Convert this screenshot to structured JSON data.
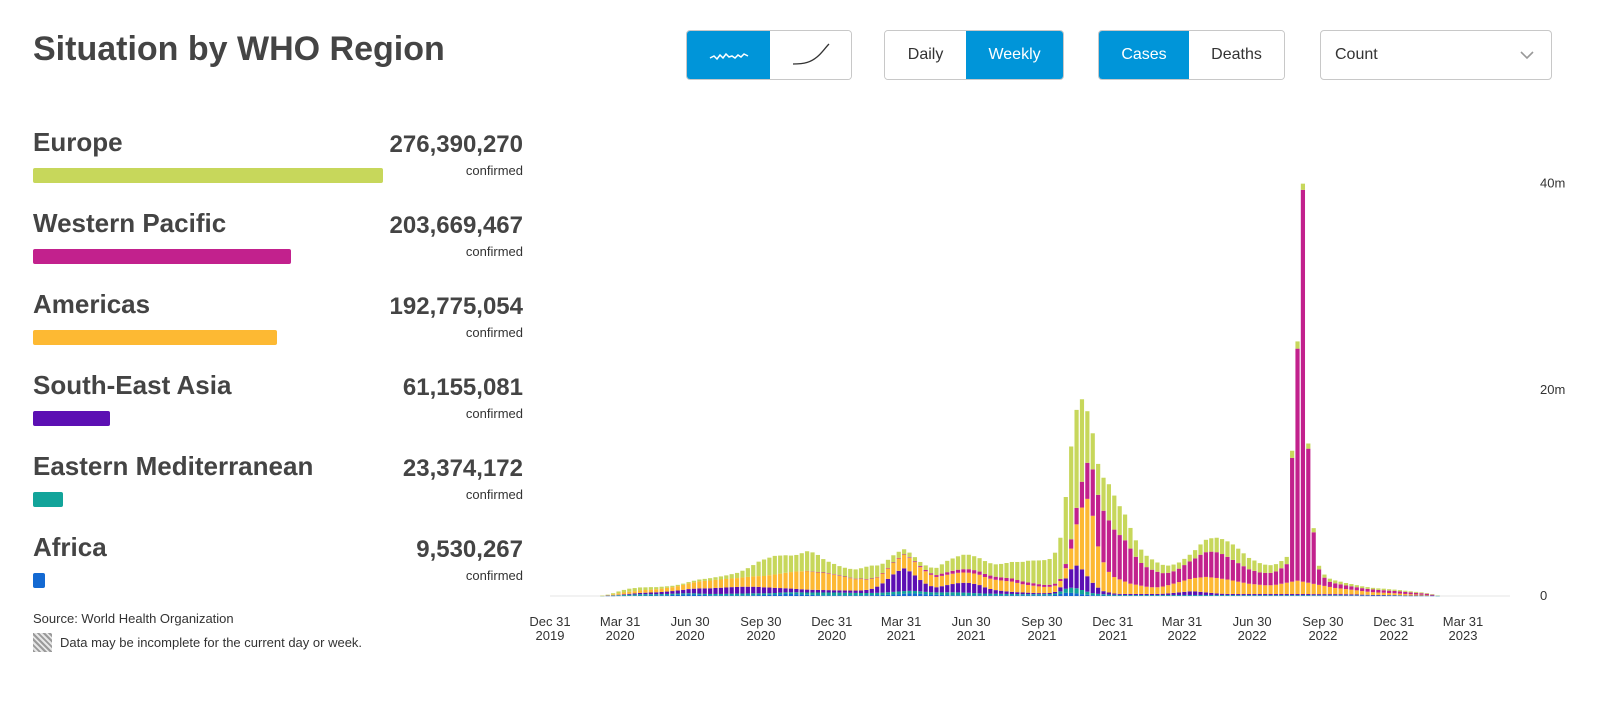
{
  "title": "Situation by WHO Region",
  "controls": {
    "chart_style": {
      "options": [
        "trend-line-icon",
        "cumulative-curve-icon"
      ],
      "selected": 0
    },
    "period": {
      "options": [
        "Daily",
        "Weekly"
      ],
      "selected": 1
    },
    "metric": {
      "options": [
        "Cases",
        "Deaths"
      ],
      "selected": 0
    },
    "scale": {
      "selected": "Count"
    }
  },
  "colors": {
    "accent": "#0095d9"
  },
  "regions": [
    {
      "name": "Europe",
      "value": "276,390,270",
      "sub": "confirmed",
      "color": "#c7d75b",
      "fraction": 1.0
    },
    {
      "name": "Western Pacific",
      "value": "203,669,467",
      "sub": "confirmed",
      "color": "#c2218d",
      "fraction": 0.737
    },
    {
      "name": "Americas",
      "value": "192,775,054",
      "sub": "confirmed",
      "color": "#fdb933",
      "fraction": 0.697
    },
    {
      "name": "South-East Asia",
      "value": "61,155,081",
      "sub": "confirmed",
      "color": "#5c0fb3",
      "fraction": 0.221
    },
    {
      "name": "Eastern Mediterranean",
      "value": "23,374,172",
      "sub": "confirmed",
      "color": "#12a49a",
      "fraction": 0.085
    },
    {
      "name": "Africa",
      "value": "9,530,267",
      "sub": "confirmed",
      "color": "#1369d2",
      "fraction": 0.034
    }
  ],
  "source": "Source: World Health Organization",
  "note": "Data may be incomplete for the current day or week.",
  "chart_data": {
    "type": "bar",
    "stacked": true,
    "x_start": "2020-01-05",
    "x_step_days": 7,
    "y_unit": "m",
    "ylim": [
      0,
      45
    ],
    "yticks": [
      {
        "value": 0,
        "label": "0"
      },
      {
        "value": 20,
        "label": "20m"
      },
      {
        "value": 40,
        "label": "40m"
      }
    ],
    "xticks": [
      {
        "date": "2019-12-31",
        "label": [
          "Dec 31",
          "2019"
        ]
      },
      {
        "date": "2020-03-31",
        "label": [
          "Mar 31",
          "2020"
        ]
      },
      {
        "date": "2020-06-30",
        "label": [
          "Jun 30",
          "2020"
        ]
      },
      {
        "date": "2020-09-30",
        "label": [
          "Sep 30",
          "2020"
        ]
      },
      {
        "date": "2020-12-31",
        "label": [
          "Dec 31",
          "2020"
        ]
      },
      {
        "date": "2021-03-31",
        "label": [
          "Mar 31",
          "2021"
        ]
      },
      {
        "date": "2021-06-30",
        "label": [
          "Jun 30",
          "2021"
        ]
      },
      {
        "date": "2021-09-30",
        "label": [
          "Sep 30",
          "2021"
        ]
      },
      {
        "date": "2021-12-31",
        "label": [
          "Dec 31",
          "2021"
        ]
      },
      {
        "date": "2022-03-31",
        "label": [
          "Mar 31",
          "2022"
        ]
      },
      {
        "date": "2022-06-30",
        "label": [
          "Jun 30",
          "2022"
        ]
      },
      {
        "date": "2022-09-30",
        "label": [
          "Sep 30",
          "2022"
        ]
      },
      {
        "date": "2022-12-31",
        "label": [
          "Dec 31",
          "2022"
        ]
      },
      {
        "date": "2023-03-31",
        "label": [
          "Mar 31",
          "2023"
        ]
      }
    ],
    "stack_order": [
      "Africa",
      "Eastern Mediterranean",
      "South-East Asia",
      "Americas",
      "Western Pacific",
      "Europe"
    ],
    "series": [
      {
        "name": "Europe",
        "color": "#c7d75b",
        "values": [
          0,
          0,
          0,
          0,
          0,
          0,
          0,
          0,
          0,
          0.02,
          0.05,
          0.1,
          0.18,
          0.25,
          0.3,
          0.3,
          0.29,
          0.26,
          0.24,
          0.2,
          0.18,
          0.15,
          0.13,
          0.12,
          0.12,
          0.13,
          0.15,
          0.18,
          0.2,
          0.23,
          0.26,
          0.3,
          0.35,
          0.42,
          0.5,
          0.65,
          0.85,
          1.1,
          1.4,
          1.6,
          1.7,
          1.8,
          1.75,
          1.7,
          1.6,
          1.6,
          1.75,
          1.9,
          1.85,
          1.65,
          1.3,
          1.1,
          1.0,
          0.9,
          0.85,
          0.85,
          0.9,
          1.0,
          1.2,
          1.25,
          1.1,
          0.9,
          0.8,
          0.7,
          0.6,
          0.5,
          0.45,
          0.4,
          0.4,
          0.45,
          0.55,
          0.7,
          0.9,
          1.1,
          1.2,
          1.3,
          1.4,
          1.4,
          1.35,
          1.3,
          1.25,
          1.2,
          1.2,
          1.3,
          1.45,
          1.6,
          1.75,
          1.9,
          2.1,
          2.2,
          2.3,
          2.4,
          2.5,
          3.0,
          4.0,
          6.5,
          9.0,
          9.5,
          8.0,
          5.0,
          3.5,
          3.0,
          3.2,
          3.5,
          3.3,
          2.8,
          2.5,
          2.0,
          1.6,
          1.3,
          1.1,
          1.0,
          0.9,
          0.8,
          0.7,
          0.65,
          0.6,
          0.6,
          0.65,
          0.8,
          1.0,
          1.2,
          1.3,
          1.4,
          1.45,
          1.5,
          1.5,
          1.4,
          1.25,
          1.1,
          1.0,
          0.9,
          0.8,
          0.75,
          0.7,
          0.7,
          0.7,
          0.7,
          0.7,
          0.6,
          0.5,
          0.4,
          0.35,
          0.3,
          0.3,
          0.28,
          0.26,
          0.24,
          0.22,
          0.2,
          0.18,
          0.17,
          0.16,
          0.15,
          0.15,
          0.14,
          0.13,
          0.12,
          0.11,
          0.1,
          0.09,
          0.08,
          0.06,
          0.05,
          0.03
        ]
      },
      {
        "name": "Western Pacific",
        "color": "#c2218d",
        "values": [
          0,
          0,
          0,
          0,
          0,
          0,
          0,
          0,
          0,
          0,
          0,
          0,
          0,
          0,
          0,
          0,
          0,
          0,
          0,
          0,
          0,
          0,
          0,
          0,
          0,
          0,
          0,
          0,
          0,
          0,
          0,
          0,
          0,
          0,
          0,
          0,
          0,
          0,
          0,
          0,
          0,
          0,
          0,
          0,
          0,
          0,
          0,
          0.02,
          0.03,
          0.04,
          0.05,
          0.05,
          0.05,
          0.05,
          0.05,
          0.05,
          0.05,
          0.05,
          0.05,
          0.05,
          0.05,
          0.05,
          0.05,
          0.05,
          0.05,
          0.05,
          0.06,
          0.08,
          0.1,
          0.12,
          0.15,
          0.18,
          0.22,
          0.25,
          0.28,
          0.3,
          0.32,
          0.34,
          0.33,
          0.31,
          0.3,
          0.3,
          0.3,
          0.3,
          0.3,
          0.3,
          0.28,
          0.27,
          0.25,
          0.24,
          0.22,
          0.2,
          0.2,
          0.2,
          0.2,
          0.4,
          0.9,
          1.6,
          2.5,
          3.5,
          4.5,
          5.0,
          5.0,
          5.0,
          4.6,
          4.3,
          4.0,
          3.4,
          2.7,
          2.2,
          1.9,
          1.7,
          1.5,
          1.3,
          1.2,
          1.2,
          1.3,
          1.5,
          1.7,
          1.9,
          2.2,
          2.4,
          2.5,
          2.5,
          2.4,
          2.2,
          2.0,
          1.8,
          1.6,
          1.4,
          1.3,
          1.2,
          1.2,
          1.2,
          1.3,
          1.5,
          1.8,
          12.0,
          22.5,
          38.0,
          13.0,
          5.0,
          1.5,
          0.8,
          0.5,
          0.45,
          0.4,
          0.35,
          0.33,
          0.3,
          0.28,
          0.27,
          0.26,
          0.25,
          0.24,
          0.23,
          0.22,
          0.21,
          0.2,
          0.18,
          0.16,
          0.14,
          0.12,
          0.1
        ]
      },
      {
        "name": "Americas",
        "color": "#fdb933",
        "values": [
          0,
          0,
          0,
          0,
          0,
          0,
          0,
          0,
          0,
          0.01,
          0.04,
          0.1,
          0.14,
          0.18,
          0.2,
          0.22,
          0.24,
          0.26,
          0.28,
          0.3,
          0.33,
          0.36,
          0.38,
          0.42,
          0.48,
          0.55,
          0.62,
          0.68,
          0.72,
          0.75,
          0.78,
          0.8,
          0.82,
          0.84,
          0.86,
          0.9,
          0.95,
          1.0,
          1.05,
          1.1,
          1.2,
          1.3,
          1.4,
          1.5,
          1.6,
          1.7,
          1.75,
          1.8,
          1.75,
          1.7,
          1.65,
          1.6,
          1.5,
          1.4,
          1.3,
          1.2,
          1.1,
          1.1,
          1.0,
          0.95,
          0.9,
          0.95,
          1.0,
          1.1,
          1.2,
          1.3,
          1.3,
          1.3,
          1.25,
          1.2,
          1.1,
          1.0,
          1.0,
          1.0,
          1.0,
          1.0,
          1.0,
          1.0,
          1.0,
          1.0,
          1.0,
          1.0,
          1.0,
          1.0,
          1.0,
          1.0,
          0.9,
          0.8,
          0.75,
          0.7,
          0.65,
          0.6,
          0.6,
          0.6,
          0.6,
          1.0,
          2.0,
          4.0,
          6.0,
          7.5,
          6.5,
          4.0,
          2.8,
          2.0,
          1.6,
          1.4,
          1.2,
          1.0,
          0.9,
          0.8,
          0.7,
          0.65,
          0.65,
          0.7,
          0.8,
          0.9,
          1.0,
          1.1,
          1.2,
          1.3,
          1.4,
          1.5,
          1.5,
          1.5,
          1.45,
          1.4,
          1.3,
          1.2,
          1.1,
          1.0,
          0.95,
          0.9,
          0.85,
          0.85,
          0.9,
          1.0,
          1.1,
          1.2,
          1.3,
          1.2,
          1.1,
          1.0,
          0.9,
          0.8,
          0.7,
          0.6,
          0.55,
          0.5,
          0.45,
          0.4,
          0.35,
          0.3,
          0.27,
          0.24,
          0.22,
          0.2,
          0.18,
          0.16,
          0.14,
          0.12,
          0.1,
          0.08,
          0.06
        ]
      },
      {
        "name": "South-East Asia",
        "color": "#5c0fb3",
        "values": [
          0,
          0,
          0,
          0,
          0,
          0,
          0,
          0,
          0,
          0,
          0.01,
          0.02,
          0.04,
          0.06,
          0.08,
          0.1,
          0.12,
          0.14,
          0.16,
          0.18,
          0.2,
          0.23,
          0.26,
          0.3,
          0.34,
          0.4,
          0.45,
          0.5,
          0.52,
          0.55,
          0.58,
          0.6,
          0.62,
          0.64,
          0.65,
          0.66,
          0.65,
          0.64,
          0.62,
          0.58,
          0.55,
          0.5,
          0.45,
          0.4,
          0.36,
          0.32,
          0.3,
          0.28,
          0.26,
          0.25,
          0.24,
          0.23,
          0.22,
          0.22,
          0.22,
          0.22,
          0.23,
          0.25,
          0.3,
          0.4,
          0.6,
          0.9,
          1.3,
          1.7,
          2.0,
          2.2,
          1.9,
          1.5,
          1.1,
          0.8,
          0.6,
          0.5,
          0.6,
          0.7,
          0.8,
          0.9,
          0.95,
          0.95,
          0.9,
          0.8,
          0.6,
          0.45,
          0.35,
          0.3,
          0.25,
          0.2,
          0.18,
          0.16,
          0.14,
          0.12,
          0.1,
          0.1,
          0.1,
          0.15,
          0.4,
          1.0,
          1.8,
          2.2,
          2.0,
          1.5,
          1.0,
          0.6,
          0.3,
          0.2,
          0.12,
          0.1,
          0.1,
          0.1,
          0.1,
          0.1,
          0.1,
          0.1,
          0.1,
          0.12,
          0.15,
          0.2,
          0.25,
          0.3,
          0.35,
          0.35,
          0.3,
          0.25,
          0.2,
          0.15,
          0.12,
          0.1,
          0.1,
          0.1,
          0.1,
          0.1,
          0.1,
          0.1,
          0.1,
          0.1,
          0.1,
          0.1,
          0.1,
          0.1,
          0.1,
          0.1,
          0.1,
          0.1,
          0.1,
          0.1,
          0.1,
          0.1,
          0.1,
          0.1,
          0.09,
          0.08,
          0.07,
          0.06,
          0.05,
          0.05,
          0.05,
          0.04,
          0.04,
          0.03,
          0.03,
          0.02,
          0.02,
          0.02,
          0.01
        ]
      },
      {
        "name": "Eastern Mediterranean",
        "color": "#12a49a",
        "values": [
          0,
          0,
          0,
          0,
          0,
          0,
          0,
          0,
          0,
          0.01,
          0.02,
          0.04,
          0.06,
          0.08,
          0.1,
          0.12,
          0.14,
          0.14,
          0.13,
          0.12,
          0.12,
          0.12,
          0.12,
          0.12,
          0.12,
          0.12,
          0.12,
          0.12,
          0.12,
          0.12,
          0.13,
          0.14,
          0.15,
          0.16,
          0.17,
          0.18,
          0.18,
          0.18,
          0.17,
          0.16,
          0.15,
          0.14,
          0.14,
          0.15,
          0.16,
          0.18,
          0.2,
          0.22,
          0.24,
          0.26,
          0.27,
          0.28,
          0.28,
          0.27,
          0.26,
          0.25,
          0.24,
          0.23,
          0.22,
          0.22,
          0.22,
          0.23,
          0.24,
          0.25,
          0.26,
          0.26,
          0.25,
          0.24,
          0.23,
          0.22,
          0.22,
          0.23,
          0.25,
          0.27,
          0.28,
          0.28,
          0.27,
          0.25,
          0.22,
          0.2,
          0.18,
          0.17,
          0.16,
          0.15,
          0.14,
          0.14,
          0.13,
          0.12,
          0.12,
          0.12,
          0.12,
          0.12,
          0.12,
          0.15,
          0.25,
          0.4,
          0.5,
          0.5,
          0.4,
          0.3,
          0.2,
          0.15,
          0.12,
          0.1,
          0.08,
          0.07,
          0.06,
          0.06,
          0.06,
          0.06,
          0.06,
          0.06,
          0.06,
          0.06,
          0.06,
          0.06,
          0.06,
          0.06,
          0.06,
          0.06,
          0.06,
          0.06,
          0.06,
          0.06,
          0.06,
          0.06,
          0.06,
          0.05,
          0.05,
          0.05,
          0.05,
          0.05,
          0.05,
          0.05,
          0.05,
          0.05,
          0.05,
          0.05,
          0.05,
          0.05,
          0.05,
          0.05,
          0.05,
          0.05,
          0.05,
          0.05,
          0.05,
          0.04,
          0.04,
          0.04,
          0.04,
          0.04,
          0.03,
          0.03,
          0.03,
          0.03,
          0.03,
          0.03,
          0.02,
          0.02,
          0.02,
          0.02,
          0.02,
          0.02,
          0.01,
          0.01
        ]
      },
      {
        "name": "Africa",
        "color": "#1369d2",
        "values": [
          0,
          0,
          0,
          0,
          0,
          0,
          0,
          0,
          0,
          0,
          0.01,
          0.01,
          0.02,
          0.02,
          0.03,
          0.03,
          0.04,
          0.04,
          0.05,
          0.06,
          0.07,
          0.08,
          0.1,
          0.12,
          0.14,
          0.15,
          0.14,
          0.12,
          0.1,
          0.08,
          0.07,
          0.06,
          0.06,
          0.06,
          0.06,
          0.06,
          0.07,
          0.08,
          0.09,
          0.1,
          0.12,
          0.15,
          0.18,
          0.2,
          0.2,
          0.18,
          0.15,
          0.12,
          0.1,
          0.08,
          0.07,
          0.06,
          0.06,
          0.06,
          0.06,
          0.06,
          0.06,
          0.06,
          0.07,
          0.08,
          0.09,
          0.1,
          0.12,
          0.15,
          0.18,
          0.22,
          0.25,
          0.25,
          0.22,
          0.18,
          0.14,
          0.12,
          0.1,
          0.09,
          0.08,
          0.07,
          0.06,
          0.06,
          0.06,
          0.06,
          0.06,
          0.06,
          0.06,
          0.06,
          0.06,
          0.06,
          0.06,
          0.06,
          0.06,
          0.06,
          0.06,
          0.06,
          0.07,
          0.1,
          0.2,
          0.3,
          0.3,
          0.25,
          0.18,
          0.12,
          0.08,
          0.06,
          0.05,
          0.04,
          0.04,
          0.04,
          0.04,
          0.04,
          0.04,
          0.04,
          0.04,
          0.04,
          0.04,
          0.04,
          0.04,
          0.04,
          0.04,
          0.04,
          0.04,
          0.04,
          0.04,
          0.04,
          0.04,
          0.04,
          0.04,
          0.04,
          0.04,
          0.04,
          0.04,
          0.04,
          0.04,
          0.04,
          0.04,
          0.04,
          0.04,
          0.04,
          0.04,
          0.04,
          0.04,
          0.04,
          0.04,
          0.03,
          0.03,
          0.03,
          0.03,
          0.03,
          0.03,
          0.03,
          0.03,
          0.03,
          0.02,
          0.02,
          0.02,
          0.02,
          0.02,
          0.02,
          0.02,
          0.02,
          0.01,
          0.01,
          0.01,
          0.01,
          0.01,
          0.01,
          0.01,
          0.01
        ]
      }
    ]
  }
}
